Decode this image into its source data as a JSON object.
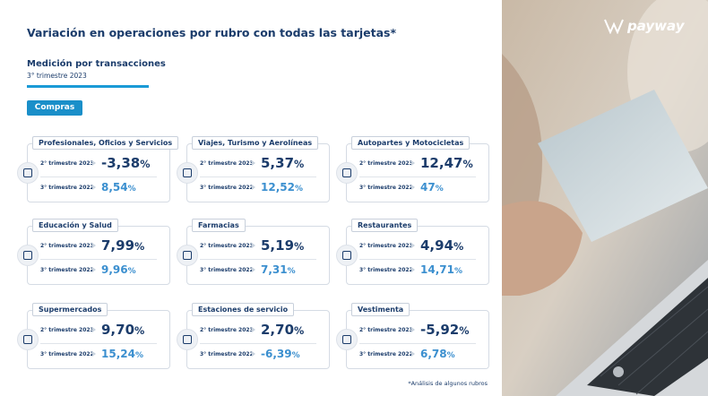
{
  "header": {
    "title": "Variación en operaciones por rubro con todas las tarjetas*",
    "subtitle": "Medición por transacciones",
    "period": "3° trimestre 2023",
    "button": "Compras",
    "logo": "payway"
  },
  "cards": [
    {
      "title": "Profesionales, Oficios y Servicios",
      "rows": [
        {
          "label": "2° trimestre 2023",
          "value": "-3,38",
          "unit": "%"
        },
        {
          "label": "3° trimestre 2022",
          "value": "8,54",
          "unit": "%"
        }
      ]
    },
    {
      "title": "Viajes, Turismo y Aerolíneas",
      "rows": [
        {
          "label": "2° trimestre 2023",
          "value": "5,37",
          "unit": "%"
        },
        {
          "label": "3° trimestre 2022",
          "value": "12,52",
          "unit": "%"
        }
      ]
    },
    {
      "title": "Autopartes y Motocicletas",
      "rows": [
        {
          "label": "2° trimestre 2023",
          "value": "12,47",
          "unit": "%"
        },
        {
          "label": "3° trimestre 2022",
          "value": "47",
          "unit": "%"
        }
      ]
    },
    {
      "title": "Educación y Salud",
      "rows": [
        {
          "label": "2° trimestre 2023",
          "value": "7,99",
          "unit": "%"
        },
        {
          "label": "3° trimestre 2022",
          "value": "9,96",
          "unit": "%"
        }
      ]
    },
    {
      "title": "Farmacias",
      "rows": [
        {
          "label": "2° trimestre 2023",
          "value": "5,19",
          "unit": "%"
        },
        {
          "label": "3° trimestre 2022",
          "value": "7,31",
          "unit": "%"
        }
      ]
    },
    {
      "title": "Restaurantes",
      "rows": [
        {
          "label": "2° trimestre 2023",
          "value": "4,94",
          "unit": "%"
        },
        {
          "label": "3° trimestre 2022",
          "value": "14,71",
          "unit": "%"
        }
      ]
    },
    {
      "title": "Supermercados",
      "rows": [
        {
          "label": "2° trimestre 2023",
          "value": "9,70",
          "unit": "%"
        },
        {
          "label": "3° trimestre 2022",
          "value": "15,24",
          "unit": "%"
        }
      ]
    },
    {
      "title": "Estaciones de servicio",
      "rows": [
        {
          "label": "2° trimestre 2023",
          "value": "2,70",
          "unit": "%"
        },
        {
          "label": "3° trimestre 2022",
          "value": "-6,39",
          "unit": "%"
        }
      ]
    },
    {
      "title": "Vestimenta",
      "rows": [
        {
          "label": "2° trimestre 2023",
          "value": "-5,92",
          "unit": "%"
        },
        {
          "label": "3° trimestre 2022",
          "value": "6,78",
          "unit": "%"
        }
      ]
    }
  ],
  "footnote": "*Análisis de algunos rubros"
}
